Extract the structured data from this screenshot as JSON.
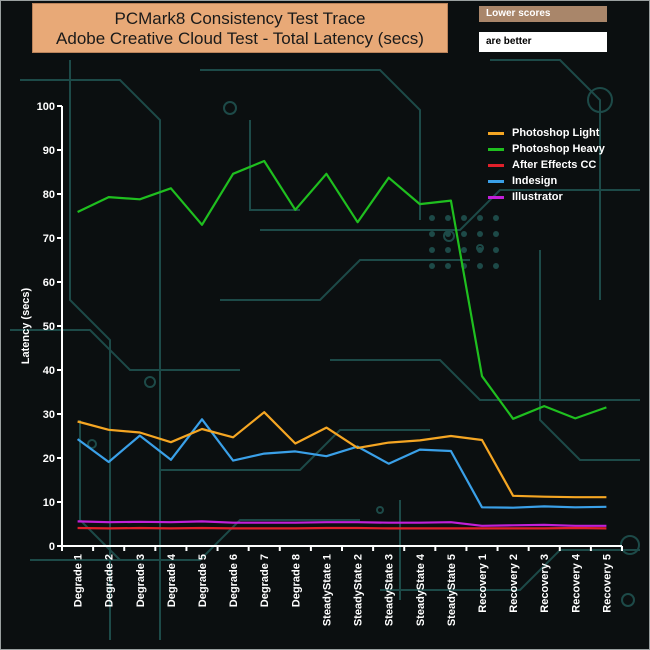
{
  "title_line1": "PCMark8 Consistency Test Trace",
  "title_line2": "Adobe Creative Cloud Test -  Total Latency (secs)",
  "note_top": "Lower scores",
  "note_bottom": "are better",
  "colors": {
    "background": "#0b0f10",
    "decor": "#1d4a48",
    "axis": "#ffffff"
  },
  "chart_data": {
    "type": "line",
    "title": "PCMark8 Consistency Test Trace Adobe Creative Cloud Test -  Total Latency (secs)",
    "xlabel": "",
    "ylabel": "Latency (secs)",
    "ylim": [
      0,
      100
    ],
    "yticks": [
      0,
      10,
      20,
      30,
      40,
      50,
      60,
      70,
      80,
      90,
      100
    ],
    "grid": false,
    "legend_position": "top-right",
    "categories": [
      "Degrade 1",
      "Degrade 2",
      "Degrade 3",
      "Degrade 4",
      "Degrade 5",
      "Degrade 6",
      "Degrade 7",
      "Degrade 8",
      "SteadyState 1",
      "SteadyState 2",
      "SteadyState 3",
      "SteadyState 4",
      "SteadyState 5",
      "Recovery 1",
      "Recovery 2",
      "Recovery 3",
      "Recovery 4",
      "Recovery 5"
    ],
    "series": [
      {
        "name": "Photoshop Light",
        "color": "#f5a623",
        "values": [
          28.3,
          26.4,
          25.8,
          23.6,
          26.6,
          24.7,
          30.4,
          23.3,
          26.9,
          22.3,
          23.5,
          24.0,
          25.0,
          24.1,
          11.4,
          11.2,
          11.1,
          11.1
        ]
      },
      {
        "name": " Photoshop Heavy",
        "color": "#1fbf1f",
        "values": [
          75.9,
          79.3,
          78.8,
          81.3,
          73.0,
          84.6,
          87.5,
          76.4,
          84.6,
          73.6,
          83.7,
          77.7,
          78.5,
          38.6,
          28.9,
          31.8,
          29.0,
          31.5
        ]
      },
      {
        "name": "After Effects CC",
        "color": "#e0202a",
        "values": [
          4.1,
          4.0,
          4.1,
          4.0,
          4.1,
          4.0,
          4.0,
          4.0,
          4.1,
          4.1,
          4.0,
          4.0,
          4.0,
          4.0,
          4.0,
          4.0,
          4.1,
          4.0
        ]
      },
      {
        "name": "Indesign",
        "color": "#3aa0e8",
        "values": [
          24.3,
          19.1,
          25.1,
          19.6,
          28.8,
          19.4,
          21.0,
          21.5,
          20.4,
          22.6,
          18.7,
          21.9,
          21.6,
          8.8,
          8.7,
          9.0,
          8.8,
          8.9
        ]
      },
      {
        "name": "Illustrator",
        "color": "#c21fd8",
        "values": [
          5.6,
          5.4,
          5.5,
          5.4,
          5.6,
          5.3,
          5.3,
          5.3,
          5.4,
          5.4,
          5.3,
          5.3,
          5.4,
          4.6,
          4.7,
          4.8,
          4.6,
          4.6
        ]
      }
    ]
  }
}
